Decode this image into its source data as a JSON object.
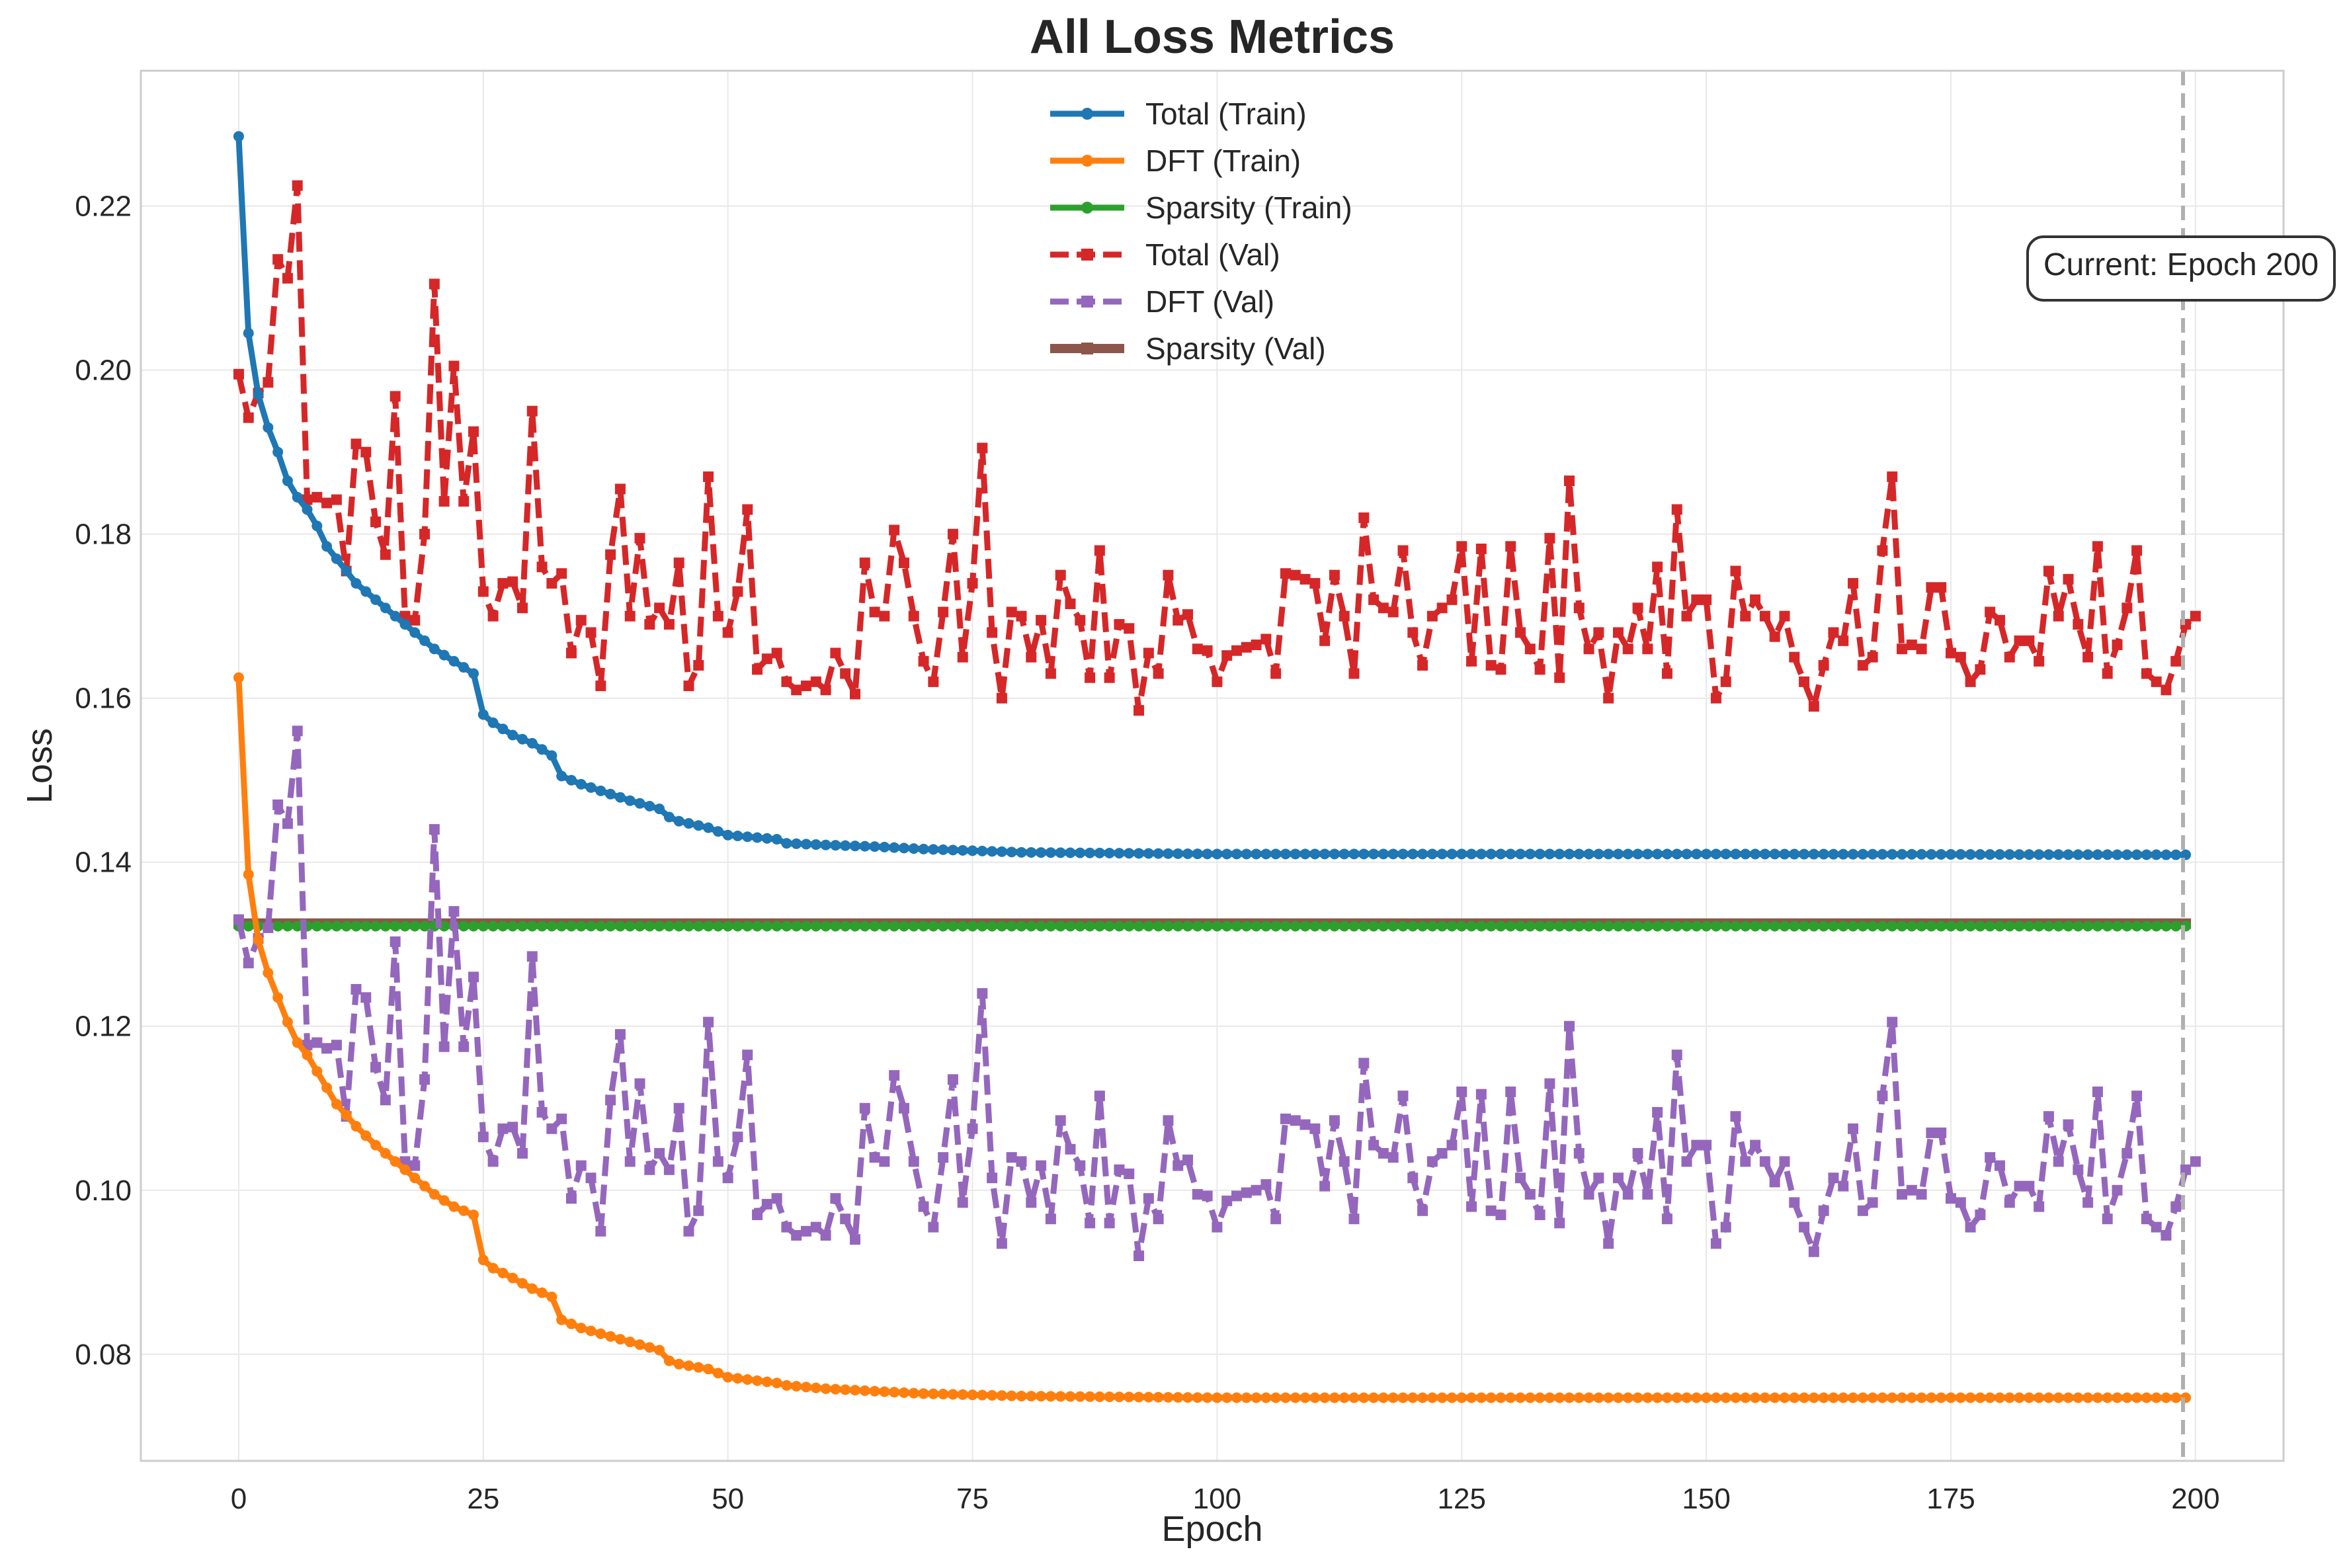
{
  "chart_data": {
    "type": "line",
    "title": "All Loss Metrics",
    "xlabel": "Epoch",
    "ylabel": "Loss",
    "xlim": [
      -10,
      209
    ],
    "ylim": [
      0.067,
      0.2365
    ],
    "xticks": [
      0,
      25,
      50,
      75,
      100,
      125,
      150,
      175,
      200
    ],
    "yticks": [
      0.08,
      0.1,
      0.12,
      0.14,
      0.16,
      0.18,
      0.2,
      0.22
    ],
    "ytick_labels": [
      "0.08",
      "0.10",
      "0.12",
      "0.14",
      "0.16",
      "0.18",
      "0.20",
      "0.22"
    ],
    "grid": true,
    "legend_position": "top-center",
    "annotation": {
      "text": "Current: Epoch 200",
      "x": 199
    },
    "series": [
      {
        "name": "Total (Train)",
        "color": "#1f77b4",
        "style": "solid",
        "marker": "circle",
        "anchors": [
          [
            0,
            0.2285
          ],
          [
            1,
            0.2045
          ],
          [
            2,
            0.197
          ],
          [
            3,
            0.193
          ],
          [
            4,
            0.19
          ],
          [
            5,
            0.1865
          ],
          [
            6,
            0.1845
          ],
          [
            7,
            0.183
          ],
          [
            8,
            0.181
          ],
          [
            9,
            0.1785
          ],
          [
            10,
            0.177
          ],
          [
            12,
            0.174
          ],
          [
            14,
            0.172
          ],
          [
            16,
            0.17
          ],
          [
            18,
            0.168
          ],
          [
            20,
            0.166
          ],
          [
            22,
            0.1645
          ],
          [
            24,
            0.163
          ],
          [
            25,
            0.158
          ],
          [
            26,
            0.157
          ],
          [
            28,
            0.1555
          ],
          [
            30,
            0.1545
          ],
          [
            32,
            0.153
          ],
          [
            33,
            0.1505
          ],
          [
            35,
            0.1495
          ],
          [
            37,
            0.1487
          ],
          [
            40,
            0.1475
          ],
          [
            43,
            0.1465
          ],
          [
            44,
            0.1455
          ],
          [
            45,
            0.145
          ],
          [
            48,
            0.1442
          ],
          [
            50,
            0.1433
          ],
          [
            55,
            0.1428
          ],
          [
            56,
            0.1423
          ],
          [
            60,
            0.1421
          ],
          [
            65,
            0.1419
          ],
          [
            70,
            0.1416
          ],
          [
            80,
            0.1412
          ],
          [
            100,
            0.141
          ],
          [
            150,
            0.141
          ],
          [
            199,
            0.1409
          ]
        ]
      },
      {
        "name": "DFT (Train)",
        "color": "#ff7f0e",
        "style": "solid",
        "marker": "circle",
        "anchors": [
          [
            0,
            0.1625
          ],
          [
            1,
            0.1385
          ],
          [
            2,
            0.1305
          ],
          [
            3,
            0.1265
          ],
          [
            4,
            0.1235
          ],
          [
            5,
            0.1205
          ],
          [
            6,
            0.118
          ],
          [
            7,
            0.1165
          ],
          [
            8,
            0.1145
          ],
          [
            9,
            0.1125
          ],
          [
            10,
            0.1105
          ],
          [
            12,
            0.1078
          ],
          [
            14,
            0.1055
          ],
          [
            16,
            0.1035
          ],
          [
            18,
            0.1015
          ],
          [
            20,
            0.0995
          ],
          [
            22,
            0.098
          ],
          [
            24,
            0.097
          ],
          [
            25,
            0.0915
          ],
          [
            26,
            0.0905
          ],
          [
            28,
            0.0893
          ],
          [
            30,
            0.088
          ],
          [
            32,
            0.087
          ],
          [
            33,
            0.0842
          ],
          [
            35,
            0.0832
          ],
          [
            37,
            0.0825
          ],
          [
            40,
            0.0815
          ],
          [
            43,
            0.0805
          ],
          [
            44,
            0.0792
          ],
          [
            45,
            0.0788
          ],
          [
            48,
            0.0782
          ],
          [
            50,
            0.0772
          ],
          [
            55,
            0.0765
          ],
          [
            56,
            0.0762
          ],
          [
            60,
            0.0758
          ],
          [
            65,
            0.0755
          ],
          [
            70,
            0.0752
          ],
          [
            80,
            0.0749
          ],
          [
            100,
            0.0747
          ],
          [
            150,
            0.0747
          ],
          [
            199,
            0.0747
          ]
        ]
      },
      {
        "name": "Sparsity (Train)",
        "color": "#2ca02c",
        "style": "solid",
        "marker": "circle",
        "constant": 0.1322
      },
      {
        "name": "Total (Val)",
        "color": "#d62728",
        "style": "dashed",
        "marker": "square",
        "values": [
          0.1995,
          0.1942,
          0.1972,
          0.1985,
          0.2135,
          0.2112,
          0.2225,
          0.1842,
          0.1845,
          0.1838,
          0.1842,
          0.1755,
          0.191,
          0.19,
          0.1815,
          0.1775,
          0.1968,
          0.17,
          0.1695,
          0.18,
          0.2105,
          0.184,
          0.2005,
          0.184,
          0.1925,
          0.173,
          0.17,
          0.174,
          0.1742,
          0.171,
          0.195,
          0.176,
          0.174,
          0.1752,
          0.1655,
          0.1695,
          0.168,
          0.1615,
          0.1775,
          0.1855,
          0.17,
          0.1795,
          0.169,
          0.171,
          0.169,
          0.1765,
          0.1615,
          0.164,
          0.187,
          0.17,
          0.168,
          0.173,
          0.183,
          0.1635,
          0.1648,
          0.1655,
          0.162,
          0.161,
          0.1615,
          0.162,
          0.161,
          0.1655,
          0.163,
          0.1605,
          0.1765,
          0.1705,
          0.17,
          0.1805,
          0.1765,
          0.17,
          0.1645,
          0.162,
          0.1705,
          0.18,
          0.165,
          0.174,
          0.1905,
          0.168,
          0.16,
          0.1705,
          0.17,
          0.165,
          0.1695,
          0.163,
          0.175,
          0.1715,
          0.1695,
          0.1625,
          0.178,
          0.1625,
          0.169,
          0.1685,
          0.1585,
          0.1655,
          0.163,
          0.175,
          0.1695,
          0.1702,
          0.166,
          0.1658,
          0.162,
          0.1652,
          0.1658,
          0.1662,
          0.1665,
          0.1672,
          0.163,
          0.1752,
          0.175,
          0.1745,
          0.174,
          0.167,
          0.175,
          0.17,
          0.163,
          0.182,
          0.172,
          0.171,
          0.1705,
          0.178,
          0.168,
          0.164,
          0.17,
          0.171,
          0.172,
          0.1785,
          0.1645,
          0.1782,
          0.164,
          0.1635,
          0.1785,
          0.168,
          0.166,
          0.1635,
          0.1795,
          0.1625,
          0.1865,
          0.171,
          0.166,
          0.168,
          0.16,
          0.168,
          0.166,
          0.171,
          0.166,
          0.176,
          0.163,
          0.183,
          0.17,
          0.172,
          0.172,
          0.16,
          0.162,
          0.1755,
          0.17,
          0.172,
          0.17,
          0.1675,
          0.17,
          0.165,
          0.162,
          0.159,
          0.164,
          0.168,
          0.167,
          0.174,
          0.164,
          0.165,
          0.178,
          0.187,
          0.166,
          0.1665,
          0.166,
          0.1735,
          0.1735,
          0.1655,
          0.165,
          0.162,
          0.1635,
          0.1705,
          0.1695,
          0.165,
          0.167,
          0.167,
          0.1645,
          0.1755,
          0.17,
          0.1745,
          0.169,
          0.165,
          0.1785,
          0.163,
          0.1665,
          0.171,
          0.178,
          0.163,
          0.162,
          0.161,
          0.1645,
          0.169,
          0.17
        ]
      },
      {
        "name": "DFT (Val)",
        "color": "#9467bd",
        "style": "dashed",
        "marker": "square"
      },
      {
        "name": "Sparsity (Val)",
        "color": "#8c564b",
        "style": "solid",
        "marker": "square",
        "constant": 0.1325
      }
    ]
  }
}
